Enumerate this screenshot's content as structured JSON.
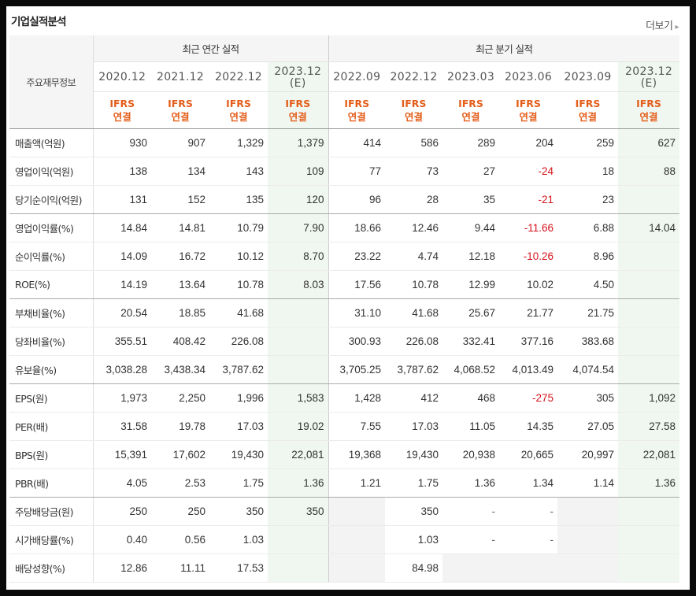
{
  "header": {
    "title": "기업실적분석",
    "more_label": "더보기"
  },
  "table": {
    "row_header_label": "주요재무정보",
    "group_annual": "최근 연간 실적",
    "group_quarter": "최근 분기 실적",
    "columns": [
      {
        "date": "2020.12",
        "est": "",
        "std": "IFRS",
        "basis": "연결"
      },
      {
        "date": "2021.12",
        "est": "",
        "std": "IFRS",
        "basis": "연결"
      },
      {
        "date": "2022.12",
        "est": "",
        "std": "IFRS",
        "basis": "연결"
      },
      {
        "date": "2023.12",
        "est": "(E)",
        "std": "IFRS",
        "basis": "연결"
      },
      {
        "date": "2022.09",
        "est": "",
        "std": "IFRS",
        "basis": "연결"
      },
      {
        "date": "2022.12",
        "est": "",
        "std": "IFRS",
        "basis": "연결"
      },
      {
        "date": "2023.03",
        "est": "",
        "std": "IFRS",
        "basis": "연결"
      },
      {
        "date": "2023.06",
        "est": "",
        "std": "IFRS",
        "basis": "연결"
      },
      {
        "date": "2023.09",
        "est": "",
        "std": "IFRS",
        "basis": "연결"
      },
      {
        "date": "2023.12",
        "est": "(E)",
        "std": "IFRS",
        "basis": "연결"
      }
    ],
    "rows": [
      {
        "label": "매출액(억원)",
        "values": [
          "930",
          "907",
          "1,329",
          "1,379",
          "414",
          "586",
          "289",
          "204",
          "259",
          "627"
        ]
      },
      {
        "label": "영업이익(억원)",
        "values": [
          "138",
          "134",
          "143",
          "109",
          "77",
          "73",
          "27",
          "-24",
          "18",
          "88"
        ]
      },
      {
        "label": "당기순이익(억원)",
        "values": [
          "131",
          "152",
          "135",
          "120",
          "96",
          "28",
          "35",
          "-21",
          "23",
          ""
        ]
      },
      {
        "label": "영업이익률(%)",
        "values": [
          "14.84",
          "14.81",
          "10.79",
          "7.90",
          "18.66",
          "12.46",
          "9.44",
          "-11.66",
          "6.88",
          "14.04"
        ]
      },
      {
        "label": "순이익률(%)",
        "values": [
          "14.09",
          "16.72",
          "10.12",
          "8.70",
          "23.22",
          "4.74",
          "12.18",
          "-10.26",
          "8.96",
          ""
        ]
      },
      {
        "label": "ROE(%)",
        "values": [
          "14.19",
          "13.64",
          "10.78",
          "8.03",
          "17.56",
          "10.78",
          "12.99",
          "10.02",
          "4.50",
          ""
        ]
      },
      {
        "label": "부채비율(%)",
        "values": [
          "20.54",
          "18.85",
          "41.68",
          "",
          "31.10",
          "41.68",
          "25.67",
          "21.77",
          "21.75",
          ""
        ]
      },
      {
        "label": "당좌비율(%)",
        "values": [
          "355.51",
          "408.42",
          "226.08",
          "",
          "300.93",
          "226.08",
          "332.41",
          "377.16",
          "383.68",
          ""
        ]
      },
      {
        "label": "유보율(%)",
        "values": [
          "3,038.28",
          "3,438.34",
          "3,787.62",
          "",
          "3,705.25",
          "3,787.62",
          "4,068.52",
          "4,013.49",
          "4,074.54",
          ""
        ]
      },
      {
        "label": "EPS(원)",
        "values": [
          "1,973",
          "2,250",
          "1,996",
          "1,583",
          "1,428",
          "412",
          "468",
          "-275",
          "305",
          "1,092"
        ]
      },
      {
        "label": "PER(배)",
        "values": [
          "31.58",
          "19.78",
          "17.03",
          "19.02",
          "7.55",
          "17.03",
          "11.05",
          "14.35",
          "27.05",
          "27.58"
        ]
      },
      {
        "label": "BPS(원)",
        "values": [
          "15,391",
          "17,602",
          "19,430",
          "22,081",
          "19,368",
          "19,430",
          "20,938",
          "20,665",
          "20,997",
          "22,081"
        ]
      },
      {
        "label": "PBR(배)",
        "values": [
          "4.05",
          "2.53",
          "1.75",
          "1.36",
          "1.21",
          "1.75",
          "1.36",
          "1.34",
          "1.14",
          "1.36"
        ]
      },
      {
        "label": "주당배당금(원)",
        "values": [
          "250",
          "250",
          "350",
          "350",
          "",
          "350",
          "-",
          "-",
          "",
          ""
        ]
      },
      {
        "label": "시가배당률(%)",
        "values": [
          "0.40",
          "0.56",
          "1.03",
          "",
          "",
          "1.03",
          "-",
          "-",
          "",
          ""
        ]
      },
      {
        "label": "배당성향(%)",
        "values": [
          "12.86",
          "11.11",
          "17.53",
          "",
          "",
          "84.98",
          "",
          "",
          "",
          ""
        ]
      }
    ],
    "group_end_rows": [
      2,
      5,
      8,
      12
    ],
    "empty_cells": [
      [
        13,
        4
      ],
      [
        13,
        8
      ],
      [
        14,
        4
      ],
      [
        14,
        8
      ],
      [
        15,
        4
      ],
      [
        15,
        6
      ],
      [
        15,
        7
      ],
      [
        15,
        8
      ]
    ]
  },
  "colors": {
    "ifrs": "#e45e1b",
    "negative": "#d4141c",
    "estimate_bg": "#f0f7f0",
    "empty_bg": "#f3f3f3"
  }
}
